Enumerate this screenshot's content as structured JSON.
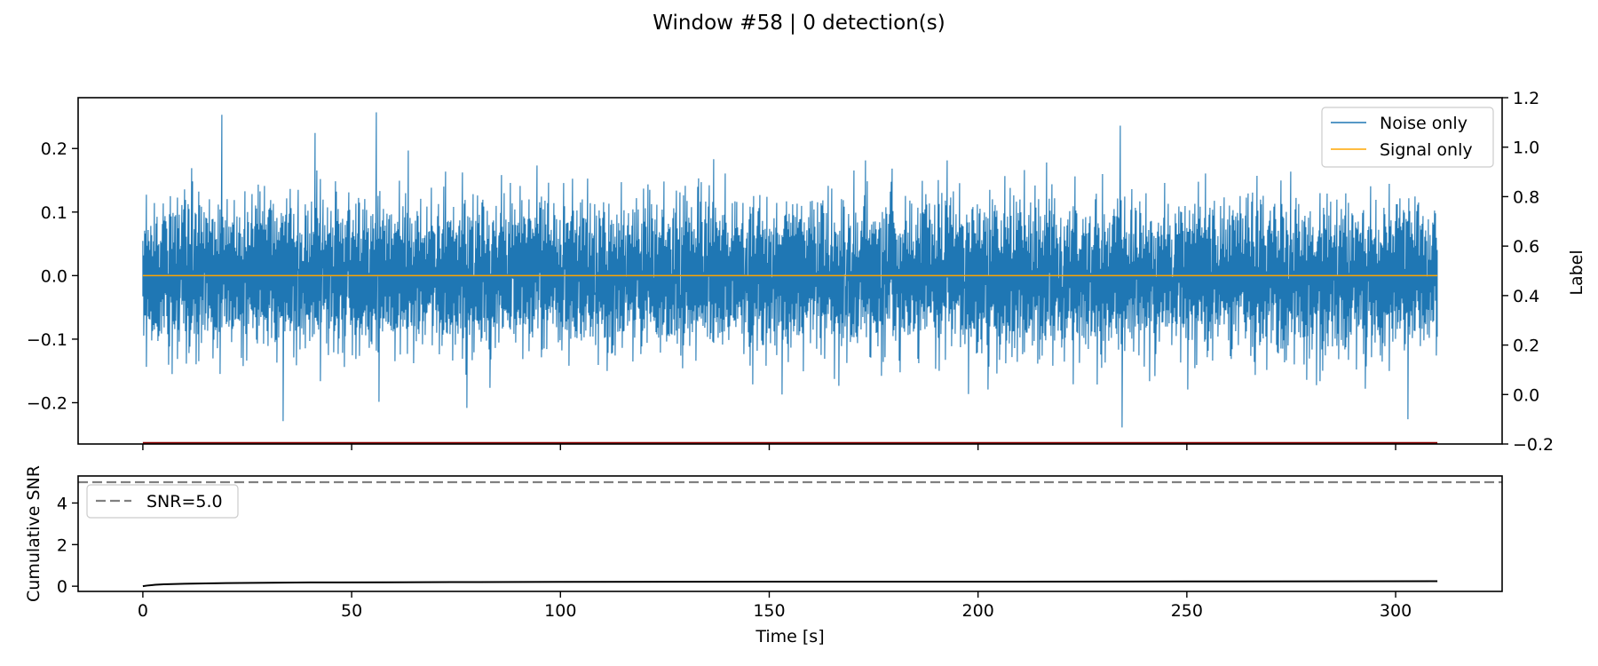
{
  "title": "Window #58 | 0 detection(s)",
  "chart_data": [
    {
      "type": "line",
      "panel": "waveform",
      "xlim": [
        -15.5,
        325.5
      ],
      "ylim": [
        -0.265,
        0.28
      ],
      "yticks": [
        -0.2,
        -0.1,
        0.0,
        0.1,
        0.2
      ],
      "ytick_labels": [
        "−0.2",
        "−0.1",
        "0.0",
        "0.1",
        "0.2"
      ],
      "xticks": [
        0,
        50,
        100,
        150,
        200,
        250,
        300
      ],
      "x_tick_labels_shown": false,
      "right_axis": {
        "ylabel": "Label",
        "ylim": [
          -0.2,
          1.2
        ],
        "yticks": [
          -0.2,
          0.0,
          0.2,
          0.4,
          0.6,
          0.8,
          1.0,
          1.2
        ],
        "ytick_labels": [
          "−0.2",
          "0.0",
          "0.2",
          "0.4",
          "0.6",
          "0.8",
          "1.0",
          "1.2"
        ]
      },
      "series": [
        {
          "name": "Noise only",
          "color": "#1f77b4",
          "kind": "gaussian-noise",
          "x_range": [
            0,
            310
          ],
          "mean": 0.0,
          "std": 0.055,
          "extremes": [
            {
              "x": 19,
              "y": 0.253
            },
            {
              "x": 56,
              "y": 0.257
            },
            {
              "x": 234,
              "y": 0.236
            },
            {
              "x": 234.5,
              "y": -0.239
            },
            {
              "x": 33.5,
              "y": -0.229
            },
            {
              "x": 303,
              "y": -0.226
            }
          ]
        },
        {
          "name": "Signal only",
          "color": "#ffa500",
          "x": [
            0,
            310
          ],
          "y": [
            0.0,
            0.0
          ]
        },
        {
          "color": "#8b0000",
          "axis": "right",
          "x": [
            0,
            310
          ],
          "y": [
            -0.2,
            -0.2
          ]
        }
      ],
      "legend": "top-right"
    },
    {
      "type": "line",
      "panel": "snr",
      "xlim": [
        -15.5,
        325.5
      ],
      "ylim": [
        -0.25,
        5.3
      ],
      "yticks": [
        0,
        2,
        4
      ],
      "ytick_labels": [
        "0",
        "2",
        "4"
      ],
      "xticks": [
        0,
        50,
        100,
        150,
        200,
        250,
        300
      ],
      "xtick_labels": [
        "0",
        "50",
        "100",
        "150",
        "200",
        "250",
        "300"
      ],
      "xlabel": "Time [s]",
      "ylabel": "Cumulative SNR",
      "threshold": {
        "name": "SNR=5.0",
        "y": 5.0,
        "color": "#808080",
        "style": "dashed"
      },
      "series": [
        {
          "color": "#000000",
          "x": [
            0,
            1,
            2,
            3,
            5,
            10,
            20,
            40,
            60,
            80,
            100,
            150,
            200,
            250,
            310
          ],
          "y": [
            0.0,
            0.03,
            0.05,
            0.07,
            0.09,
            0.12,
            0.15,
            0.18,
            0.19,
            0.2,
            0.21,
            0.22,
            0.22,
            0.23,
            0.24
          ]
        }
      ],
      "legend": "upper-left"
    }
  ]
}
